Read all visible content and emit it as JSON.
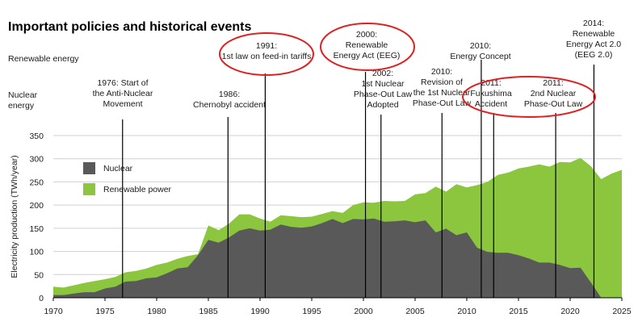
{
  "chart_data": {
    "type": "area",
    "title": "Important policies and historical events",
    "row_labels": {
      "renewable": "Renewable energy",
      "nuclear": "Nuclear energy"
    },
    "ylabel": "Electricity production (TWh/year)",
    "xlabel": "",
    "xlim": [
      1970,
      2025
    ],
    "ylim": [
      0,
      350
    ],
    "x_ticks": [
      "1970",
      "1975",
      "1980",
      "1985",
      "1990",
      "1995",
      "2000",
      "2005",
      "2010",
      "2015",
      "2020",
      "2025"
    ],
    "y_ticks": [
      "0",
      "50",
      "100",
      "150",
      "200",
      "250",
      "300",
      "350"
    ],
    "legend": [
      {
        "name": "Nuclear",
        "color": "#595959"
      },
      {
        "name": "Renewable power",
        "color": "#8cc63f"
      }
    ],
    "series": [
      {
        "name": "Nuclear",
        "color": "#595959",
        "x": [
          1970,
          1971,
          1972,
          1973,
          1974,
          1975,
          1976,
          1977,
          1978,
          1979,
          1980,
          1981,
          1982,
          1983,
          1984,
          1985,
          1986,
          1987,
          1988,
          1989,
          1990,
          1991,
          1992,
          1993,
          1994,
          1995,
          1996,
          1997,
          1998,
          1999,
          2000,
          2001,
          2002,
          2003,
          2004,
          2005,
          2006,
          2007,
          2008,
          2009,
          2010,
          2011,
          2012,
          2013,
          2014,
          2015,
          2016,
          2017,
          2018,
          2019,
          2020,
          2021,
          2022,
          2023,
          2024,
          2025
        ],
        "values": [
          6,
          6,
          9,
          12,
          12,
          20,
          24,
          35,
          36,
          42,
          44,
          53,
          63,
          66,
          92,
          125,
          119,
          130,
          145,
          150,
          145,
          147,
          158,
          153,
          151,
          154,
          161,
          170,
          161,
          170,
          169,
          171,
          164,
          165,
          167,
          163,
          167,
          141,
          149,
          135,
          141,
          108,
          99,
          97,
          97,
          92,
          85,
          76,
          76,
          71,
          64,
          65,
          33,
          0,
          0,
          0
        ]
      },
      {
        "name": "Renewable power",
        "color": "#8cc63f",
        "x": [
          1970,
          1971,
          1972,
          1973,
          1974,
          1975,
          1976,
          1977,
          1978,
          1979,
          1980,
          1981,
          1982,
          1983,
          1984,
          1985,
          1986,
          1987,
          1988,
          1989,
          1990,
          1991,
          1992,
          1993,
          1994,
          1995,
          1996,
          1997,
          1998,
          1999,
          2000,
          2001,
          2002,
          2003,
          2004,
          2005,
          2006,
          2007,
          2008,
          2009,
          2010,
          2011,
          2012,
          2013,
          2014,
          2015,
          2016,
          2017,
          2018,
          2019,
          2020,
          2021,
          2022,
          2023,
          2024,
          2025
        ],
        "values": [
          24,
          22,
          27,
          32,
          36,
          40,
          45,
          55,
          58,
          63,
          71,
          76,
          84,
          90,
          94,
          156,
          146,
          160,
          180,
          180,
          171,
          164,
          178,
          176,
          174,
          175,
          181,
          187,
          183,
          200,
          206,
          205,
          209,
          208,
          209,
          223,
          226,
          240,
          229,
          245,
          238,
          243,
          250,
          265,
          270,
          279,
          283,
          288,
          283,
          293,
          292,
          302,
          284,
          256,
          268,
          276
        ]
      }
    ],
    "annotations": [
      {
        "id": "a1976",
        "lines": [
          "1976: Start of",
          "the Anti-Nuclear",
          "Movement"
        ],
        "x": 1976.7,
        "row": "nuclear"
      },
      {
        "id": "a1986",
        "lines": [
          "1986:",
          "Chernobyl accident"
        ],
        "x": 1986.9,
        "row": "nuclear"
      },
      {
        "id": "a1991",
        "lines": [
          "1991:",
          "1st law on feed-in tariffs"
        ],
        "x": 1990.5,
        "row": "renewable",
        "highlight": true
      },
      {
        "id": "a2000",
        "lines": [
          "2000:",
          "Renewable",
          "Energy Act (EEG)"
        ],
        "x": 2000.2,
        "row": "renewable",
        "highlight": true
      },
      {
        "id": "a2002",
        "lines": [
          "2002:",
          "1st Nuclear",
          "Phase-Out Law",
          "Adopted"
        ],
        "x": 2001.7,
        "row": "nuclear"
      },
      {
        "id": "a2010a",
        "lines": [
          "2010:",
          "Revision of",
          "the 1st Nuclear",
          "Phase-Out Law"
        ],
        "x": 2007.6,
        "row": "nuclear"
      },
      {
        "id": "a2010b",
        "lines": [
          "2010:",
          "Energy Concept"
        ],
        "x": 2011.4,
        "row": "renewable"
      },
      {
        "id": "a2011a",
        "lines": [
          "2011:",
          "Fukushima",
          "Accident"
        ],
        "x": 2012.6,
        "row": "nuclear",
        "highlight": true
      },
      {
        "id": "a2011b",
        "lines": [
          "2011:",
          "2nd Nuclear",
          "Phase-Out Law"
        ],
        "x": 2018.6,
        "row": "nuclear",
        "highlight": true
      },
      {
        "id": "a2014",
        "lines": [
          "2014:",
          "Renewable",
          "Energy Act 2.0",
          "(EEG 2.0)"
        ],
        "x": 2022.3,
        "row": "renewable"
      }
    ]
  }
}
